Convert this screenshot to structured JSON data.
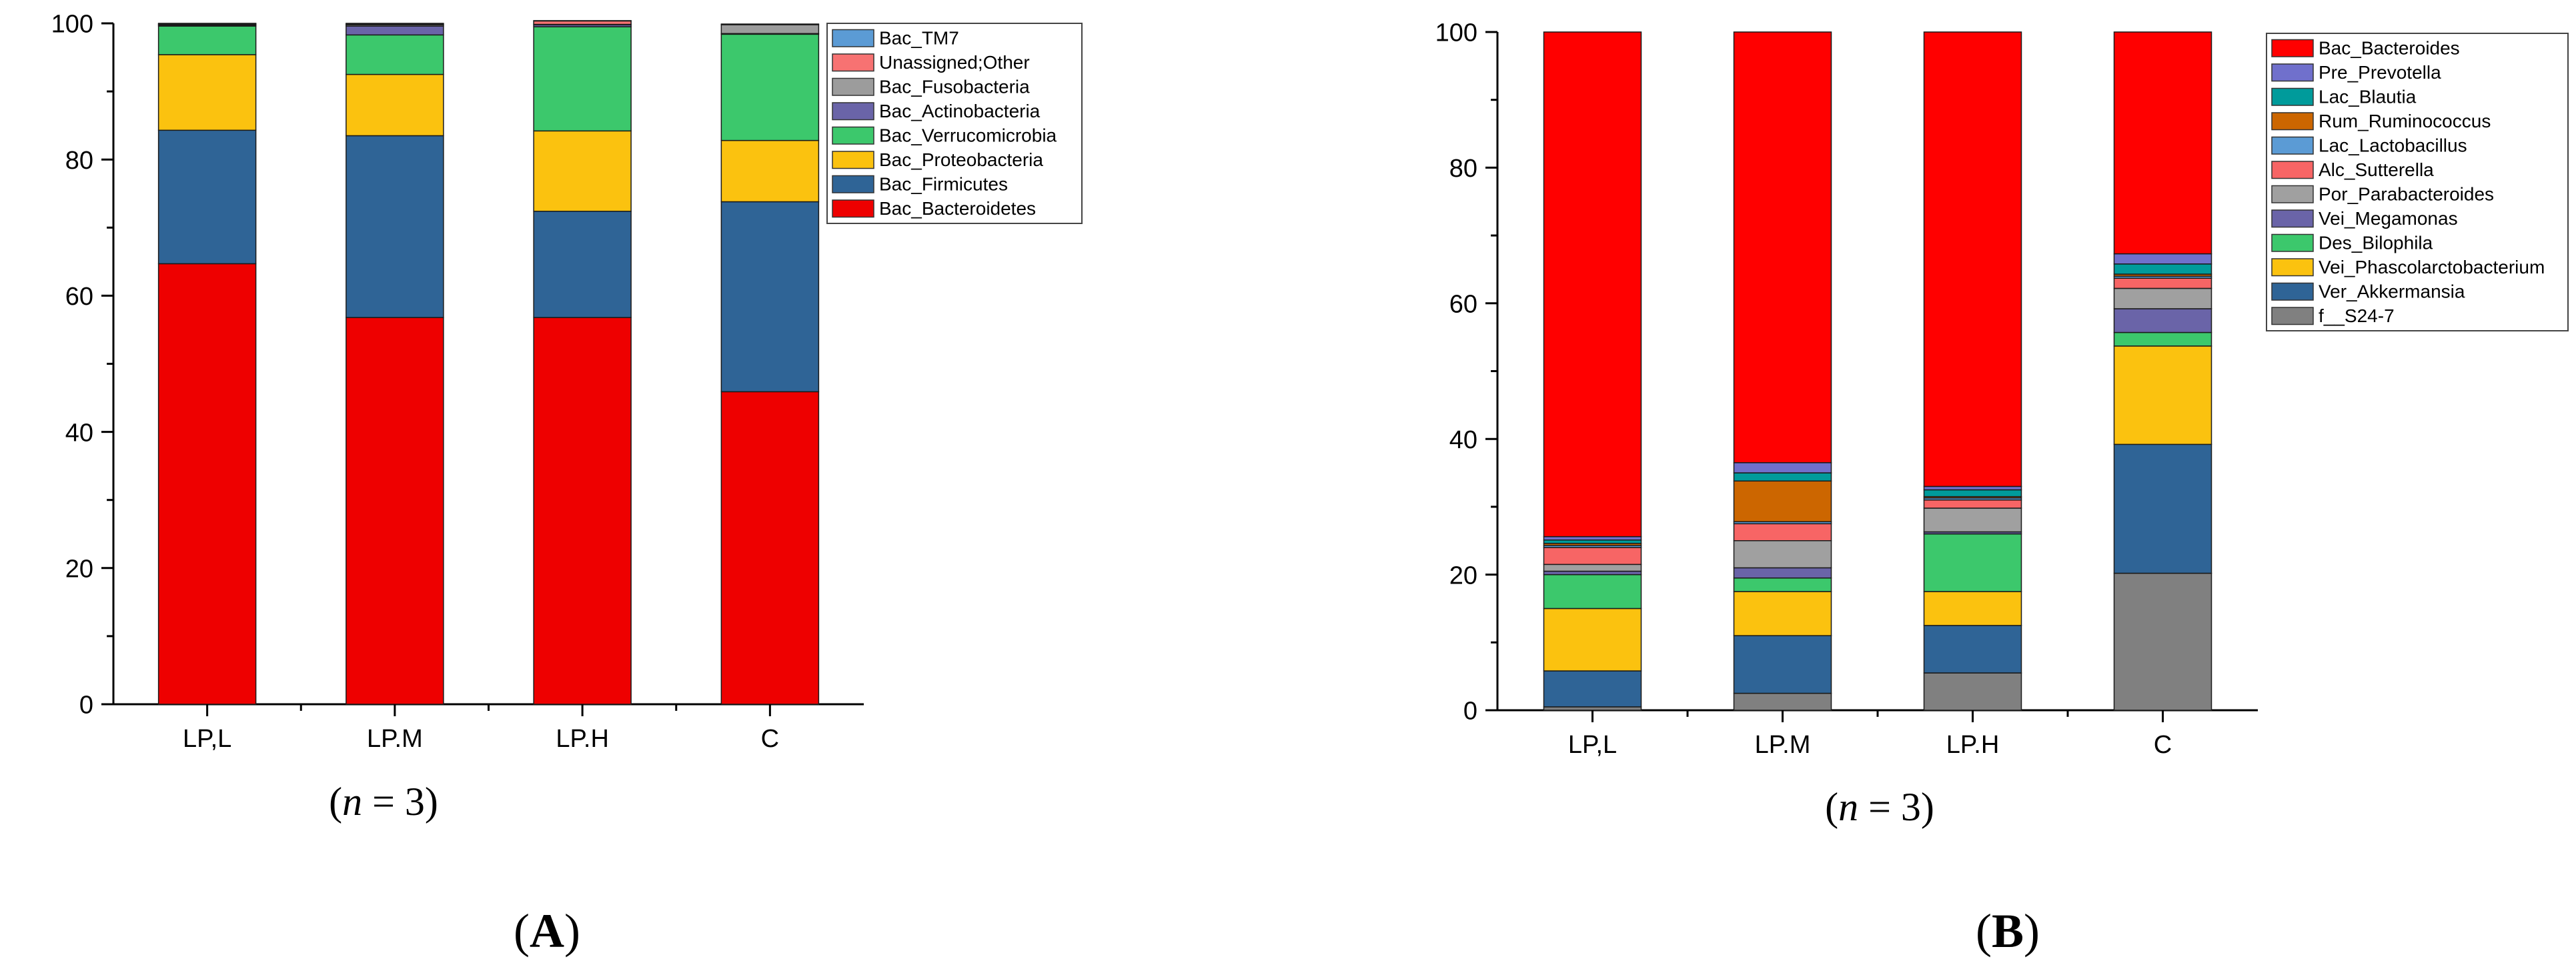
{
  "figure": {
    "caption_a_prefix": "(",
    "caption_a_var": "n",
    "caption_a_suffix": " = 3)",
    "caption_b_prefix": "(",
    "caption_b_var": "n",
    "caption_b_suffix": " = 3)",
    "panel_a_label": "A",
    "panel_b_label": "B",
    "paren_open": "(",
    "paren_close": ")"
  },
  "chart_data": [
    {
      "type": "bar",
      "stacked": true,
      "title": "",
      "xlabel": "",
      "ylabel": "",
      "ylim": [
        0,
        100
      ],
      "yticks": [
        0,
        20,
        40,
        60,
        80,
        100
      ],
      "categories": [
        "LP,L",
        "LP.M",
        "LP.H",
        "C"
      ],
      "series": [
        {
          "name": "Bac_Bacteroidetes",
          "color": "#ee0000",
          "values": [
            64.7,
            56.8,
            56.8,
            45.9
          ]
        },
        {
          "name": "Bac_Firmicutes",
          "color": "#2f6496",
          "values": [
            19.6,
            26.7,
            15.6,
            27.9
          ]
        },
        {
          "name": "Bac_Proteobacteria",
          "color": "#fbc20f",
          "values": [
            11.1,
            9.0,
            11.8,
            9.0
          ]
        },
        {
          "name": "Bac_Verrucomicrobia",
          "color": "#3cc86c",
          "values": [
            4.2,
            5.8,
            15.3,
            15.6
          ]
        },
        {
          "name": "Bac_Actinobacteria",
          "color": "#6a64a8",
          "values": [
            0.15,
            1.3,
            0.3,
            0.1
          ]
        },
        {
          "name": "Bac_Fusobacteria",
          "color": "#9c9c9c",
          "values": [
            0.1,
            0.2,
            0.05,
            1.3
          ]
        },
        {
          "name": "Unassigned;Other",
          "color": "#f77272",
          "values": [
            0.1,
            0.1,
            0.5,
            0.1
          ]
        },
        {
          "name": "Bac_TM7",
          "color": "#5b9bd5",
          "values": [
            0.05,
            0.1,
            0.05,
            0.0
          ]
        }
      ],
      "legend_position": "top-right",
      "legend_order": [
        "Bac_TM7",
        "Unassigned;Other",
        "Bac_Fusobacteria",
        "Bac_Actinobacteria",
        "Bac_Verrucomicrobia",
        "Bac_Proteobacteria",
        "Bac_Firmicutes",
        "Bac_Bacteroidetes"
      ]
    },
    {
      "type": "bar",
      "stacked": true,
      "title": "",
      "xlabel": "",
      "ylabel": "",
      "ylim": [
        0,
        100
      ],
      "yticks": [
        0,
        20,
        40,
        60,
        80,
        100
      ],
      "categories": [
        "LP,L",
        "LP.M",
        "LP.H",
        "C"
      ],
      "series": [
        {
          "name": "f__S24-7",
          "color": "#808080",
          "values": [
            0.5,
            2.5,
            5.5,
            20.2
          ]
        },
        {
          "name": "Ver_Akkermansia",
          "color": "#2f6496",
          "values": [
            5.3,
            8.5,
            7.0,
            19.0
          ]
        },
        {
          "name": "Vei_Phascolarctobacterium",
          "color": "#fbc20f",
          "values": [
            9.2,
            6.5,
            5.0,
            14.5
          ]
        },
        {
          "name": "Des_Bilophila",
          "color": "#3cc86c",
          "values": [
            5.0,
            2.0,
            8.5,
            2.0
          ]
        },
        {
          "name": "Vei_Megamonas",
          "color": "#6a64a8",
          "values": [
            0.5,
            1.5,
            0.3,
            3.5
          ]
        },
        {
          "name": "Por_Parabacteroides",
          "color": "#a0a0a0",
          "values": [
            1.0,
            4.0,
            3.5,
            3.0
          ]
        },
        {
          "name": "Alc_Sutterella",
          "color": "#f76565",
          "values": [
            2.5,
            2.5,
            1.2,
            1.5
          ]
        },
        {
          "name": "Lac_Lactobacillus",
          "color": "#5b9bd5",
          "values": [
            0.3,
            0.3,
            0.3,
            0.3
          ]
        },
        {
          "name": "Rum_Ruminococcus",
          "color": "#cc6600",
          "values": [
            0.3,
            6.0,
            0.2,
            0.3
          ]
        },
        {
          "name": "Lac_Blautia",
          "color": "#009b9b",
          "values": [
            0.5,
            1.2,
            1.0,
            1.5
          ]
        },
        {
          "name": "Pre_Prevotella",
          "color": "#7070cc",
          "values": [
            0.5,
            1.5,
            0.5,
            1.5
          ]
        },
        {
          "name": "Bac_Bacteroides",
          "color": "#ff0000",
          "values": [
            74.4,
            63.5,
            67.0,
            32.7
          ]
        }
      ],
      "legend_position": "top-right",
      "legend_order": [
        "Bac_Bacteroides",
        "Pre_Prevotella",
        "Lac_Blautia",
        "Rum_Ruminococcus",
        "Lac_Lactobacillus",
        "Alc_Sutterella",
        "Por_Parabacteroides",
        "Vei_Megamonas",
        "Des_Bilophila",
        "Vei_Phascolarctobacterium",
        "Ver_Akkermansia",
        "f__S24-7"
      ]
    }
  ]
}
